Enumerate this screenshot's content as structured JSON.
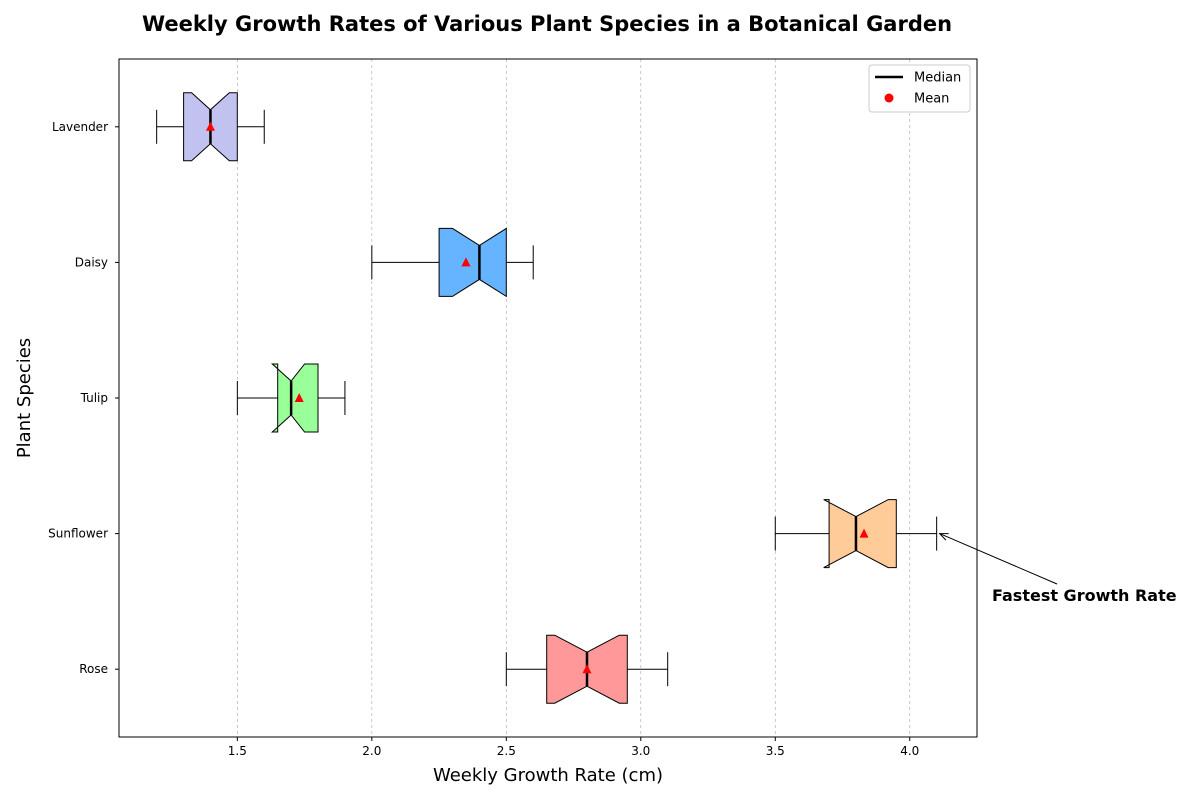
{
  "chart_data": {
    "type": "boxplot",
    "orientation": "horizontal",
    "notched": true,
    "title": "Weekly Growth Rates of Various Plant Species in a Botanical Garden",
    "xlabel": "Weekly Growth Rate (cm)",
    "ylabel": "Plant Species",
    "xlim": [
      1.06,
      4.25
    ],
    "xticks": [
      "1.5",
      "2.0",
      "2.5",
      "3.0",
      "3.5",
      "4.0"
    ],
    "xtick_values": [
      1.5,
      2.0,
      2.5,
      3.0,
      3.5,
      4.0
    ],
    "grid": "x-dashed",
    "legend": {
      "position": "top-right",
      "entries": [
        {
          "label": "Median",
          "marker": "line",
          "color": "#000000"
        },
        {
          "label": "Mean",
          "marker": "circle",
          "color": "#ff0000"
        }
      ]
    },
    "series": [
      {
        "name": "Rose",
        "whisker_low": 2.5,
        "q1": 2.65,
        "median": 2.8,
        "q3": 2.95,
        "whisker_high": 3.1,
        "mean": 2.8,
        "notch_low": 2.68,
        "notch_high": 2.92,
        "color": "#ff9999"
      },
      {
        "name": "Sunflower",
        "whisker_low": 3.5,
        "q1": 3.7,
        "median": 3.8,
        "q3": 3.95,
        "whisker_high": 4.1,
        "mean": 3.83,
        "notch_low": 3.68,
        "notch_high": 3.92,
        "color": "#ffcc99"
      },
      {
        "name": "Tulip",
        "whisker_low": 1.5,
        "q1": 1.65,
        "median": 1.7,
        "q3": 1.8,
        "whisker_high": 1.9,
        "mean": 1.73,
        "notch_low": 1.63,
        "notch_high": 1.75,
        "color": "#99ff99"
      },
      {
        "name": "Daisy",
        "whisker_low": 2.0,
        "q1": 2.25,
        "median": 2.4,
        "q3": 2.5,
        "whisker_high": 2.6,
        "mean": 2.35,
        "notch_low": 2.3,
        "notch_high": 2.5,
        "color": "#66b3ff"
      },
      {
        "name": "Lavender",
        "whisker_low": 1.2,
        "q1": 1.3,
        "median": 1.4,
        "q3": 1.5,
        "whisker_high": 1.6,
        "mean": 1.4,
        "notch_low": 1.33,
        "notch_high": 1.47,
        "color": "#c2c2f0"
      }
    ],
    "annotations": [
      {
        "text": "Fastest Growth Rate",
        "target_series": "Sunflower",
        "target_x": 4.1
      }
    ]
  }
}
